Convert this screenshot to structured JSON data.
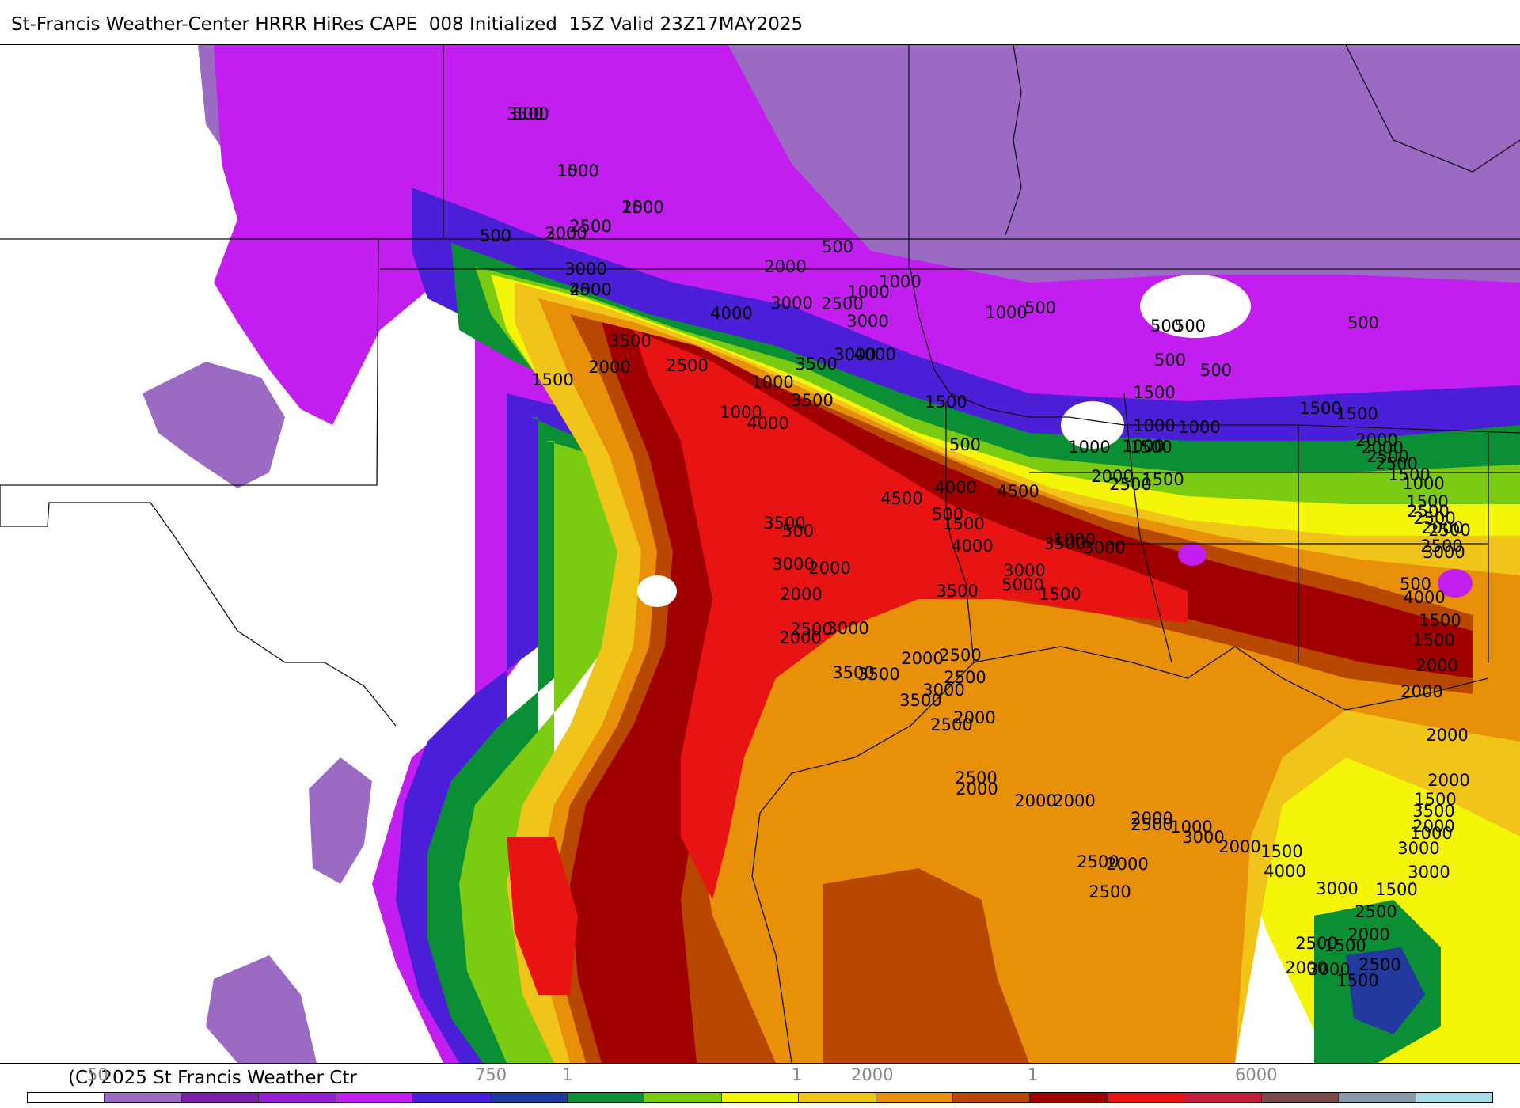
{
  "title": "St-Francis Weather-Center HRRR HiRes CAPE  008 Initialized  15Z Valid 23Z17MAY2025",
  "copyright": "(C) 2025 St Francis Weather Ctr",
  "legend": {
    "colors": [
      "#ffffff",
      "#9b6bc4",
      "#7a1fa8",
      "#9a1fd1",
      "#c21ef0",
      "#4b1fd8",
      "#223a9e",
      "#0a8f35",
      "#7acb12",
      "#f5f50a",
      "#f0c419",
      "#e8900a",
      "#b84800",
      "#a00000",
      "#e81414",
      "#c4203e",
      "#7a4a4a",
      "#8a9aa8",
      "#a8dce8"
    ],
    "tick_labels": [
      "50",
      "750",
      "1",
      "1",
      "2000",
      "1",
      "6000"
    ]
  },
  "map": {
    "field_palette": {
      "purple": "#c21ef0",
      "lavender": "#9b6bc4",
      "blue": "#4b1fd8",
      "green": "#0a8f35",
      "lime": "#7acb12",
      "yellow": "#f5f50a",
      "gold": "#f0c419",
      "orange": "#e8900a",
      "rust": "#b84800",
      "maroon": "#a00000",
      "red": "#e81414"
    },
    "contour_labels": [
      "500",
      "1000",
      "1500",
      "2500",
      "500",
      "2000",
      "3000",
      "4000",
      "2000",
      "500",
      "1000",
      "3000",
      "2500",
      "3000",
      "4000",
      "1000",
      "3500",
      "2000",
      "2500",
      "4000",
      "3000",
      "1500",
      "3500",
      "1000",
      "1000",
      "3500",
      "4000",
      "1500",
      "500",
      "1000",
      "500",
      "500",
      "500",
      "500",
      "500",
      "500",
      "1000",
      "1000",
      "1000",
      "1500",
      "1500",
      "1500",
      "1000",
      "1500",
      "2000",
      "2500",
      "4500",
      "1500",
      "500",
      "4000",
      "1500",
      "4500",
      "3500",
      "1000",
      "3000",
      "3000",
      "3500",
      "5000",
      "1500",
      "2000",
      "3500",
      "3000",
      "500",
      "4000",
      "2000",
      "2500",
      "2500",
      "2000",
      "3500",
      "3000",
      "2000",
      "2500",
      "3000",
      "3500",
      "3500",
      "2500",
      "2000",
      "2500",
      "2000",
      "2000",
      "2000",
      "2000",
      "2500",
      "2500",
      "2500",
      "2000",
      "1000",
      "3000",
      "2000",
      "1500",
      "4000",
      "3000",
      "2500",
      "2000",
      "1500",
      "2500",
      "1500",
      "3000",
      "2000",
      "2500",
      "1500",
      "3000",
      "3000",
      "1000",
      "2000",
      "3500",
      "1500",
      "2000",
      "2000",
      "2000",
      "2000",
      "1500",
      "1500",
      "4000",
      "500",
      "3000",
      "2500",
      "2500",
      "2000",
      "2500",
      "2500",
      "1500",
      "1000",
      "1500",
      "2500",
      "2500",
      "2000",
      "2000",
      "3500",
      "1500",
      "2000",
      "2500",
      "500",
      "3000",
      "3000",
      "2500"
    ]
  }
}
